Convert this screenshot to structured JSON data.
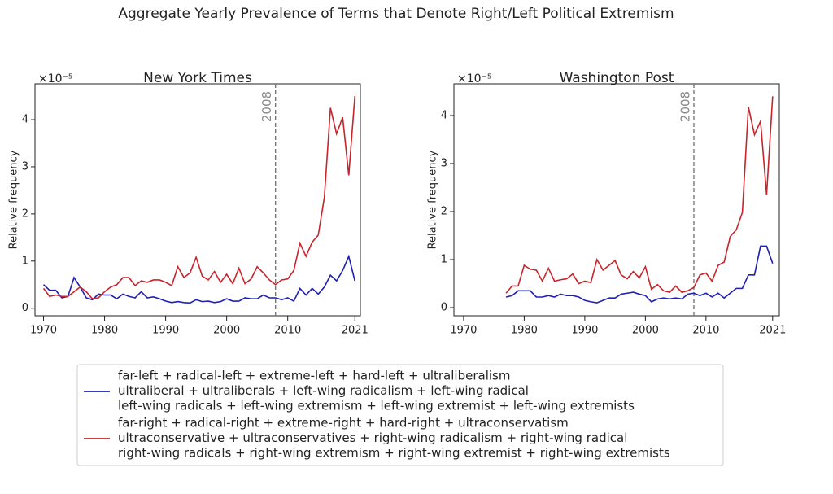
{
  "suptitle": "Aggregate Yearly Prevalence of Terms that Denote Right/Left Political Extremism",
  "chart_data": [
    {
      "type": "line",
      "title": "New York Times",
      "ylabel": "Relative frequency",
      "y_multiplier": "×10⁻⁵",
      "xlim": [
        1968.6,
        2021.9
      ],
      "ylim": [
        -0.16,
        4.76
      ],
      "xticks": [
        1970,
        1980,
        1990,
        2000,
        2010,
        2021
      ],
      "yticks": [
        0,
        1,
        2,
        3,
        4
      ],
      "vline": {
        "value": 2008,
        "label": "2008"
      },
      "x": [
        1970,
        1971,
        1972,
        1973,
        1974,
        1975,
        1976,
        1977,
        1978,
        1979,
        1980,
        1981,
        1982,
        1983,
        1984,
        1985,
        1986,
        1987,
        1988,
        1989,
        1990,
        1991,
        1992,
        1993,
        1994,
        1995,
        1996,
        1997,
        1998,
        1999,
        2000,
        2001,
        2002,
        2003,
        2004,
        2005,
        2006,
        2007,
        2008,
        2009,
        2010,
        2011,
        2012,
        2013,
        2014,
        2015,
        2016,
        2017,
        2018,
        2019,
        2020,
        2021
      ],
      "series": [
        {
          "name": [
            "far-left + radical-left + extreme-left + hard-left + ultraliberalism",
            "ultraliberal + ultraliberals + left-wing radicalism + left-wing radical",
            "left-wing radicals + left-wing extremism + left-wing extremist + left-wing extremists"
          ],
          "color": "#1f1fb4",
          "values": [
            0.5,
            0.38,
            0.38,
            0.22,
            0.25,
            0.65,
            0.45,
            0.22,
            0.18,
            0.3,
            0.28,
            0.28,
            0.2,
            0.3,
            0.25,
            0.22,
            0.35,
            0.22,
            0.24,
            0.2,
            0.15,
            0.12,
            0.14,
            0.12,
            0.11,
            0.18,
            0.14,
            0.15,
            0.12,
            0.14,
            0.2,
            0.15,
            0.15,
            0.22,
            0.2,
            0.2,
            0.28,
            0.22,
            0.22,
            0.18,
            0.22,
            0.15,
            0.42,
            0.28,
            0.42,
            0.3,
            0.45,
            0.7,
            0.58,
            0.8,
            1.1,
            0.58
          ]
        },
        {
          "name": [
            "far-right + radical-right + extreme-right + hard-right + ultraconservatism",
            "ultraconservative + ultraconservatives + right-wing radicalism + right-wing radical",
            "right-wing radicals + right-wing extremism + right-wing extremist + right-wing extremists"
          ],
          "color": "#c8242b",
          "values": [
            0.42,
            0.25,
            0.28,
            0.25,
            0.25,
            0.35,
            0.45,
            0.35,
            0.2,
            0.22,
            0.35,
            0.45,
            0.5,
            0.65,
            0.65,
            0.48,
            0.58,
            0.55,
            0.6,
            0.6,
            0.55,
            0.48,
            0.88,
            0.65,
            0.75,
            1.08,
            0.68,
            0.6,
            0.78,
            0.55,
            0.72,
            0.52,
            0.85,
            0.52,
            0.62,
            0.88,
            0.75,
            0.6,
            0.5,
            0.6,
            0.62,
            0.8,
            1.38,
            1.1,
            1.4,
            1.55,
            2.35,
            4.25,
            3.7,
            4.05,
            2.82,
            4.5
          ]
        }
      ]
    },
    {
      "type": "line",
      "title": "Washington Post",
      "ylabel": "Relative frequency",
      "y_multiplier": "×10⁻⁵",
      "xlim": [
        1968.4,
        2022.1
      ],
      "ylim": [
        -0.17,
        4.66
      ],
      "xticks": [
        1970,
        1980,
        1990,
        2000,
        2010,
        2021
      ],
      "yticks": [
        0,
        1,
        2,
        3,
        4
      ],
      "vline": {
        "value": 2008,
        "label": "2008"
      },
      "x": [
        1977,
        1978,
        1979,
        1980,
        1981,
        1982,
        1983,
        1984,
        1985,
        1986,
        1987,
        1988,
        1989,
        1990,
        1991,
        1992,
        1993,
        1994,
        1995,
        1996,
        1997,
        1998,
        1999,
        2000,
        2001,
        2002,
        2003,
        2004,
        2005,
        2006,
        2007,
        2008,
        2009,
        2010,
        2011,
        2012,
        2013,
        2014,
        2015,
        2016,
        2017,
        2018,
        2019,
        2020,
        2021
      ],
      "series": [
        {
          "color": "#1f1fb4",
          "values": [
            0.22,
            0.25,
            0.35,
            0.35,
            0.35,
            0.22,
            0.22,
            0.25,
            0.22,
            0.28,
            0.25,
            0.25,
            0.22,
            0.15,
            0.12,
            0.1,
            0.15,
            0.2,
            0.2,
            0.28,
            0.3,
            0.32,
            0.28,
            0.25,
            0.12,
            0.18,
            0.2,
            0.18,
            0.2,
            0.18,
            0.28,
            0.3,
            0.25,
            0.3,
            0.22,
            0.3,
            0.2,
            0.3,
            0.4,
            0.4,
            0.68,
            0.68,
            1.28,
            1.28,
            0.92
          ]
        },
        {
          "color": "#c8242b",
          "values": [
            0.3,
            0.45,
            0.45,
            0.88,
            0.8,
            0.78,
            0.55,
            0.82,
            0.55,
            0.58,
            0.6,
            0.7,
            0.5,
            0.55,
            0.52,
            1.0,
            0.78,
            0.88,
            0.98,
            0.68,
            0.6,
            0.75,
            0.62,
            0.85,
            0.38,
            0.48,
            0.35,
            0.32,
            0.45,
            0.32,
            0.35,
            0.42,
            0.68,
            0.72,
            0.55,
            0.88,
            0.95,
            1.48,
            1.62,
            1.98,
            4.18,
            3.6,
            3.88,
            2.35,
            4.4
          ]
        }
      ]
    }
  ]
}
